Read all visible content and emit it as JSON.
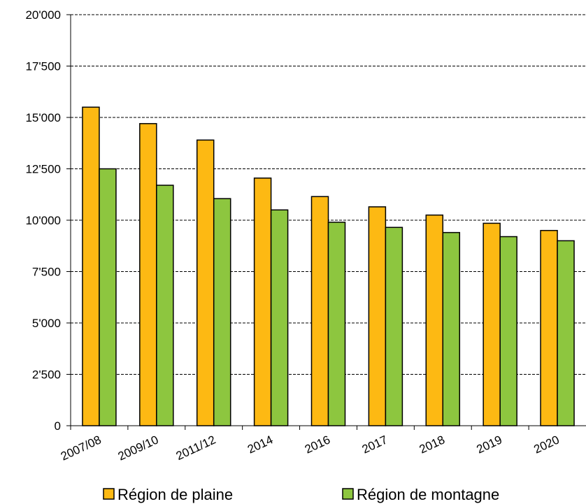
{
  "chart_data": {
    "type": "bar",
    "categories": [
      "2007/08",
      "2009/10",
      "2011/12",
      "2014",
      "2016",
      "2017",
      "2018",
      "2019",
      "2020"
    ],
    "series": [
      {
        "name": "Région de plaine",
        "color": "#fdb913",
        "values": [
          15500,
          14700,
          13900,
          12050,
          11150,
          10650,
          10250,
          9850,
          9500
        ]
      },
      {
        "name": "Région de montagne",
        "color": "#8dc63f",
        "values": [
          12500,
          11700,
          11050,
          10500,
          9900,
          9650,
          9400,
          9200,
          9000
        ]
      }
    ],
    "ylim": [
      0,
      20000
    ],
    "yticks": [
      0,
      {
        "value": 2500,
        "label": "2'500"
      },
      {
        "value": 5000,
        "label": "5'000"
      },
      {
        "value": 7500,
        "label": "7'500"
      },
      {
        "value": 10000,
        "label": "10'000"
      },
      {
        "value": 12500,
        "label": "12'500"
      },
      {
        "value": 15000,
        "label": "15'000"
      },
      {
        "value": 17500,
        "label": "17'500"
      },
      {
        "value": 20000,
        "label": "20'000"
      }
    ],
    "grid": true,
    "legend": "bottom"
  }
}
